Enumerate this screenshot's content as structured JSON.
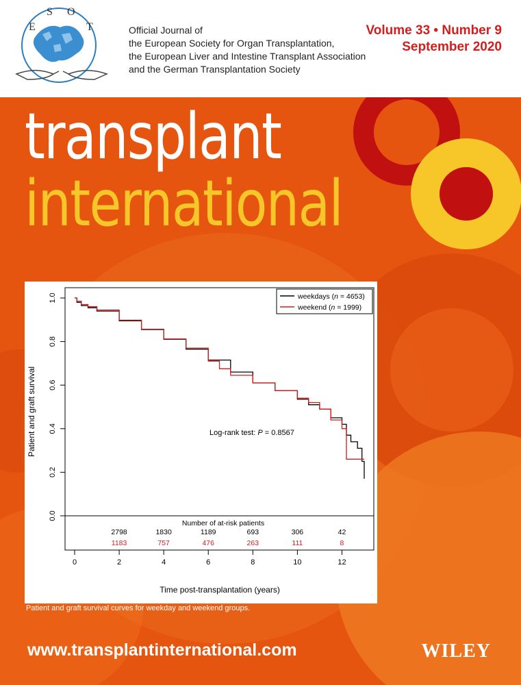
{
  "header": {
    "logo_letters": [
      "E",
      "S",
      "O",
      "T"
    ],
    "org_lines": [
      "Official Journal of",
      "the European Society for Organ Transplantation,",
      "the European Liver and Intestine Transplant Association",
      "and the German Transplantation Society"
    ],
    "volume_line": "Volume 33 • Number 9",
    "date_line": "September 2020"
  },
  "title": {
    "line1": "transplant",
    "line2": "international"
  },
  "colors": {
    "orange_bg": "#e5550f",
    "yellow": "#f7c72a",
    "dark_red": "#c0100f",
    "white": "#ffffff"
  },
  "chart_data": {
    "type": "line",
    "xlabel": "Time post-transplantation (years)",
    "ylabel": "Patient and graft survival",
    "xlim": [
      0,
      13
    ],
    "ylim": [
      0,
      1
    ],
    "x_ticks": [
      0,
      2,
      4,
      6,
      8,
      10,
      12
    ],
    "y_ticks": [
      0.0,
      0.2,
      0.4,
      0.6,
      0.8,
      1.0
    ],
    "y_tick_labels": [
      "0.0",
      "0.2",
      "0.4",
      "0.6",
      "0.8",
      "1.0"
    ],
    "series": [
      {
        "legend_prefix": "weekdays (",
        "legend_n": "n",
        "legend_suffix": " = 4653)",
        "color": "#000000",
        "x": [
          0,
          0.1,
          0.3,
          0.6,
          1,
          2,
          3,
          4,
          5,
          6,
          7,
          8,
          9,
          10,
          10.5,
          11,
          11.5,
          12,
          12.2,
          12.4,
          12.7,
          12.9,
          13.0
        ],
        "y": [
          1.0,
          0.98,
          0.965,
          0.955,
          0.94,
          0.895,
          0.855,
          0.81,
          0.765,
          0.715,
          0.66,
          0.61,
          0.575,
          0.535,
          0.51,
          0.49,
          0.45,
          0.42,
          0.37,
          0.34,
          0.31,
          0.25,
          0.17
        ]
      },
      {
        "legend_prefix": "weekend (",
        "legend_n": "n",
        "legend_suffix": " = 1999)",
        "color": "#d21e1e",
        "x": [
          0,
          0.1,
          0.3,
          0.6,
          1,
          2,
          3,
          4,
          5,
          6,
          6.5,
          7,
          8,
          9,
          10,
          10.5,
          11,
          11.5,
          12,
          12.2,
          12.5,
          13.0
        ],
        "y": [
          1.0,
          0.985,
          0.97,
          0.96,
          0.945,
          0.898,
          0.857,
          0.812,
          0.77,
          0.71,
          0.675,
          0.645,
          0.61,
          0.575,
          0.54,
          0.52,
          0.49,
          0.44,
          0.4,
          0.26,
          0.26,
          0.26
        ]
      }
    ],
    "annotation_prefix": "Log-rank test: ",
    "annotation_p": "P",
    "annotation_suffix": " = 0.8567",
    "at_risk_title": "Number of at-risk patients",
    "at_risk_x": [
      2,
      4,
      6,
      8,
      10,
      12
    ],
    "at_risk_weekdays": [
      "2798",
      "1830",
      "1189",
      "693",
      "306",
      "42"
    ],
    "at_risk_weekend": [
      "1183",
      "757",
      "476",
      "263",
      "111",
      "8"
    ]
  },
  "caption": "Patient and graft survival curves for weekday and weekend groups.",
  "footer": {
    "website": "www.transplantinternational.com",
    "publisher": "WILEY"
  }
}
